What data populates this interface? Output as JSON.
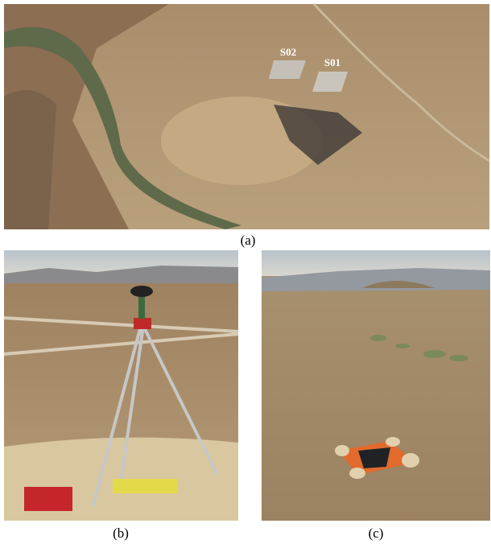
{
  "panels": [
    {
      "label": "(a)",
      "annotations": [
        "S02",
        "S01"
      ]
    },
    {
      "label": "(b)"
    },
    {
      "label": "(c)"
    }
  ]
}
